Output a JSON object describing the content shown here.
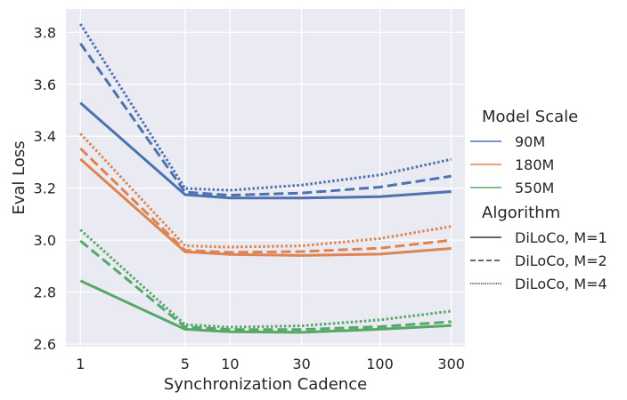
{
  "chart_data": {
    "type": "line",
    "xlabel": "Synchronization Cadence",
    "ylabel": "Eval Loss",
    "x_scale": "log",
    "x": [
      1,
      5,
      10,
      30,
      100,
      300
    ],
    "x_ticks": [
      "1",
      "5",
      "10",
      "30",
      "100",
      "300"
    ],
    "y_ticks": [
      "2.6",
      "2.8",
      "3.0",
      "3.2",
      "3.4",
      "3.6",
      "3.8"
    ],
    "ylim": [
      2.59,
      3.89
    ],
    "grid": true,
    "legend_placement": "right",
    "colors": {
      "90M": "#4c72b0",
      "180M": "#dd8452",
      "550M": "#55a868",
      "background": "#eaeaf2",
      "grid": "#ffffff",
      "legend_line": "#333333"
    },
    "legend": {
      "scale_title": "Model Scale",
      "scales": [
        "90M",
        "180M",
        "550M"
      ],
      "algorithm_title": "Algorithm",
      "algorithms": [
        "DiLoCo, M=1",
        "DiLoCo, M=2",
        "DiLoCo, M=4"
      ]
    },
    "series": [
      {
        "model_scale": "90M",
        "algorithm": "DiLoCo, M=1",
        "values": [
          3.528,
          3.175,
          3.162,
          3.162,
          3.167,
          3.187
        ]
      },
      {
        "model_scale": "90M",
        "algorithm": "DiLoCo, M=2",
        "values": [
          3.757,
          3.185,
          3.173,
          3.181,
          3.204,
          3.246
        ]
      },
      {
        "model_scale": "90M",
        "algorithm": "DiLoCo, M=4",
        "values": [
          3.832,
          3.199,
          3.192,
          3.212,
          3.251,
          3.311
        ]
      },
      {
        "model_scale": "180M",
        "algorithm": "DiLoCo, M=1",
        "values": [
          3.312,
          2.955,
          2.945,
          2.941,
          2.946,
          2.968
        ]
      },
      {
        "model_scale": "180M",
        "algorithm": "DiLoCo, M=2",
        "values": [
          3.353,
          2.961,
          2.953,
          2.956,
          2.969,
          3.0
        ]
      },
      {
        "model_scale": "180M",
        "algorithm": "DiLoCo, M=4",
        "values": [
          3.41,
          2.978,
          2.973,
          2.978,
          3.006,
          3.053
        ]
      },
      {
        "model_scale": "550M",
        "algorithm": "DiLoCo, M=1",
        "values": [
          2.844,
          2.657,
          2.647,
          2.645,
          2.657,
          2.671
        ]
      },
      {
        "model_scale": "550M",
        "algorithm": "DiLoCo, M=2",
        "values": [
          2.997,
          2.666,
          2.656,
          2.656,
          2.667,
          2.686
        ]
      },
      {
        "model_scale": "550M",
        "algorithm": "DiLoCo, M=4",
        "values": [
          3.04,
          2.675,
          2.665,
          2.67,
          2.693,
          2.727
        ]
      }
    ]
  }
}
